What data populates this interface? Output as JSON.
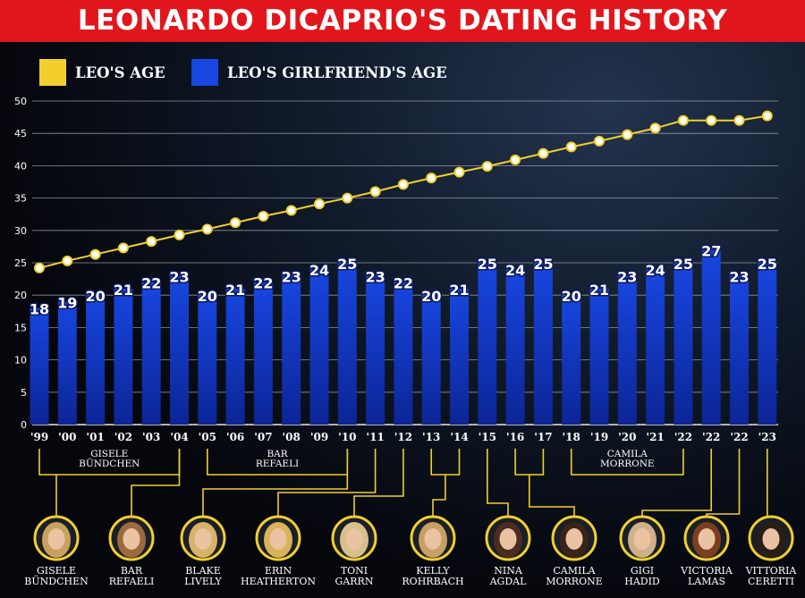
{
  "page_title": "LEONARDO DICAPRIO'S DATING HISTORY",
  "legend": {
    "leo": {
      "label": "LEO'S AGE",
      "color": "#f2cf2c"
    },
    "girlfriend": {
      "label": "LEO'S GIRLFRIEND'S AGE",
      "color": "#1846e0"
    }
  },
  "chart_data": {
    "type": "bar",
    "title": "LEONARDO DICAPRIO'S DATING HISTORY",
    "ylim": [
      0,
      50
    ],
    "yticks": [
      0,
      5,
      10,
      15,
      20,
      25,
      30,
      35,
      40,
      45,
      50
    ],
    "grid": true,
    "legend_position": "top-left",
    "categories": [
      "'99",
      "'00",
      "'01",
      "'02",
      "'03",
      "'04",
      "'05",
      "'06",
      "'07",
      "'08",
      "'09",
      "'10",
      "'11",
      "'12",
      "'13",
      "'14",
      "'15",
      "'16",
      "'17",
      "'18",
      "'19",
      "'20",
      "'21",
      "'22",
      "'22",
      "'22",
      "'23"
    ],
    "series": [
      {
        "name": "LEO'S GIRLFRIEND'S AGE",
        "type": "bar",
        "color": "#1846e0",
        "values": [
          18,
          19,
          20,
          21,
          22,
          23,
          20,
          21,
          22,
          23,
          24,
          25,
          23,
          22,
          20,
          21,
          25,
          24,
          25,
          20,
          21,
          23,
          24,
          25,
          27,
          23,
          25
        ]
      },
      {
        "name": "LEO'S AGE",
        "type": "line",
        "color": "#f2cf2c",
        "values": [
          24.2,
          25.3,
          26.3,
          27.3,
          28.3,
          29.3,
          30.2,
          31.2,
          32.2,
          33.1,
          34.1,
          35,
          36,
          37.1,
          38.1,
          39,
          39.9,
          40.9,
          41.9,
          42.9,
          43.8,
          44.8,
          45.8,
          47,
          47,
          47,
          47.7
        ]
      }
    ],
    "groups": [
      {
        "label": "GISELE BÜNDCHEN",
        "from": 0,
        "to": 5
      },
      {
        "label": "BAR REFAELI",
        "from": 6,
        "to": 11
      },
      {
        "label": "CAMILA MORRONE",
        "from": 19,
        "to": 23
      }
    ],
    "people": [
      {
        "name": "GISELE BÜNDCHEN",
        "bars": [
          2
        ]
      },
      {
        "name": "BAR REFAELI",
        "bars": [
          5
        ]
      },
      {
        "name": "BLAKE LIVELY",
        "bars": [
          11
        ]
      },
      {
        "name": "ERIN HEATHERTON",
        "bars": [
          12
        ]
      },
      {
        "name": "TONI GARRN",
        "bars": [
          13
        ]
      },
      {
        "name": "KELLY ROHRBACH",
        "bars": [
          14,
          15
        ]
      },
      {
        "name": "NINA AGDAL",
        "bars": [
          16
        ]
      },
      {
        "name": "CAMILA MORRONE",
        "bars": [
          17,
          18
        ]
      },
      {
        "name": "GIGI HADID",
        "bars": [
          24
        ]
      },
      {
        "name": "VICTORIA LAMAS",
        "bars": [
          25
        ]
      },
      {
        "name": "VITTORIA CERETTI",
        "bars": [
          26
        ]
      }
    ]
  }
}
